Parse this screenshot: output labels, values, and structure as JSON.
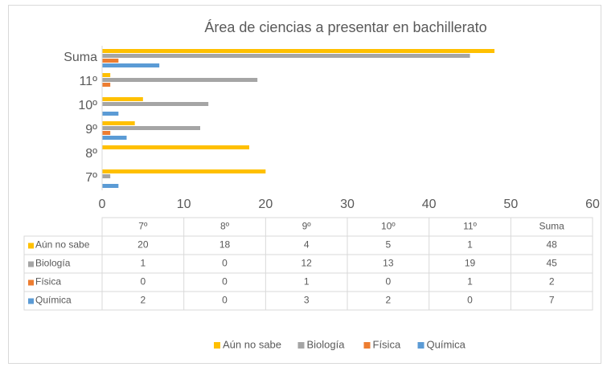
{
  "chart_data": {
    "type": "bar",
    "orientation": "horizontal",
    "title": "Área de ciencias a presentar en bachillerato",
    "categories": [
      "7º",
      "8º",
      "9º",
      "10º",
      "11º",
      "Suma"
    ],
    "series": [
      {
        "name": "Aún no sabe",
        "color": "#FFC000",
        "values": [
          20,
          18,
          4,
          5,
          1,
          48
        ]
      },
      {
        "name": "Biología",
        "color": "#A5A5A5",
        "values": [
          1,
          0,
          12,
          13,
          19,
          45
        ]
      },
      {
        "name": "Física",
        "color": "#ED7D31",
        "values": [
          0,
          0,
          1,
          0,
          1,
          2
        ]
      },
      {
        "name": "Química",
        "color": "#5B9BD5",
        "values": [
          2,
          0,
          3,
          2,
          0,
          7
        ]
      }
    ],
    "xlim": [
      0,
      60
    ],
    "xticks": [
      0,
      10,
      20,
      30,
      40,
      50,
      60
    ],
    "grid": false,
    "data_table": true,
    "legend": "bottom"
  }
}
